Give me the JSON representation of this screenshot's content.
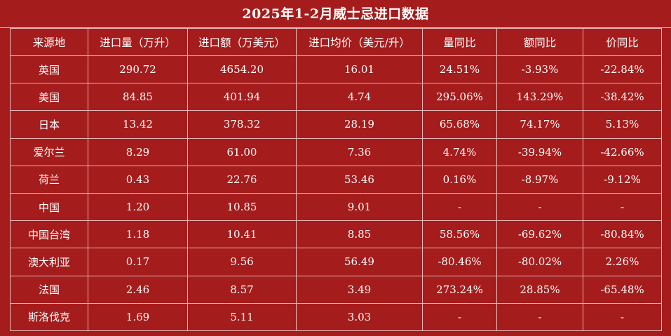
{
  "title": "2025年1-2月威士忌进口数据",
  "columns": [
    "来源地",
    "进口量（万升）",
    "进口额（万美元）",
    "进口均价（美元/升）",
    "量同比",
    "额同比",
    "价同比"
  ],
  "rows": [
    [
      "英国",
      "290.72",
      "4654.20",
      "16.01",
      "24.51%",
      "-3.93%",
      "-22.84%"
    ],
    [
      "美国",
      "84.85",
      "401.94",
      "4.74",
      "295.06%",
      "143.29%",
      "-38.42%"
    ],
    [
      "日本",
      "13.42",
      "378.32",
      "28.19",
      "65.68%",
      "74.17%",
      "5.13%"
    ],
    [
      "爱尔兰",
      "8.29",
      "61.00",
      "7.36",
      "4.74%",
      "-39.94%",
      "-42.66%"
    ],
    [
      "荷兰",
      "0.43",
      "22.76",
      "53.46",
      "0.16%",
      "-8.97%",
      "-9.12%"
    ],
    [
      "中国",
      "1.20",
      "10.85",
      "9.01",
      "-",
      "-",
      "-"
    ],
    [
      "中国台湾",
      "1.18",
      "10.41",
      "8.85",
      "58.56%",
      "-69.62%",
      "-80.84%"
    ],
    [
      "澳大利亚",
      "0.17",
      "9.56",
      "56.49",
      "-80.46%",
      "-80.02%",
      "2.26%"
    ],
    [
      "法国",
      "2.46",
      "8.57",
      "3.49",
      "273.24%",
      "28.85%",
      "-65.48%"
    ],
    [
      "斯洛伐克",
      "1.69",
      "5.11",
      "3.03",
      "-",
      "-",
      "-"
    ]
  ],
  "colors": {
    "background": "#a51c1c",
    "gridline": "#e8b9b9",
    "text": "#ffffff"
  }
}
